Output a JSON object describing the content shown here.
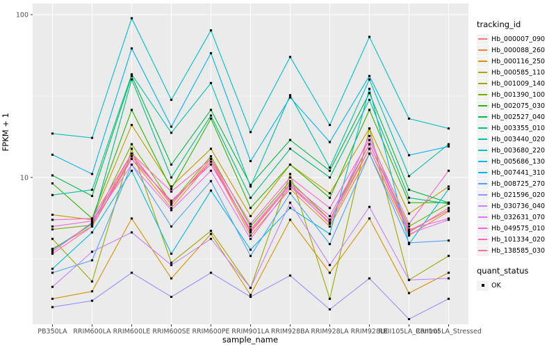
{
  "figure": {
    "y_axis": {
      "label": "FPKM + 1",
      "tick_labels": [
        "100",
        "10"
      ],
      "tick_values": [
        100,
        10
      ]
    },
    "x_axis": {
      "label": "sample_name"
    },
    "legend": {
      "tracking_title": "tracking_id",
      "quant_title": "quant_status",
      "quant_items": [
        {
          "label": "OK",
          "marker": "black-square"
        }
      ]
    },
    "colors": {
      "panel_bg": "#EBEBEB",
      "grid": "#FFFFFF",
      "axis_text": "#4D4D4D",
      "axis_tick": "#333333",
      "point": "#000000",
      "legend_key_bg": "#F2F2F2"
    }
  },
  "chart_data": {
    "type": "line",
    "title": "",
    "xlabel": "sample_name",
    "ylabel": "FPKM + 1",
    "y_scale": "log10",
    "ylim": [
      1.24,
      111
    ],
    "y_major_gridlines": [
      10,
      100
    ],
    "y_minor_gridlines": [
      3.162,
      31.62
    ],
    "grid": true,
    "legend_position": "right",
    "point_marker": "black square (quant_status OK)",
    "categories": [
      "PB350LA",
      "RRIM600LA",
      "RRIM600LE",
      "RRIM600SE",
      "RRIM600PE",
      "RRIM901LA",
      "RRIM928BA",
      "RRIM928LA",
      "RRIM928LE",
      "RRII105LA_Control",
      "RRII105LA_Stressed"
    ],
    "series": [
      {
        "name": "Hb_000007_090",
        "color": "#F8766D",
        "values": [
          3.6,
          5.2,
          14,
          6.8,
          13,
          4.6,
          9.0,
          5.2,
          15,
          4.6,
          6.5
        ]
      },
      {
        "name": "Hb_000088_260",
        "color": "#EB8335",
        "values": [
          3.65,
          5.0,
          13,
          6.5,
          12.5,
          4.4,
          8.5,
          5.0,
          14,
          4.4,
          6.2
        ]
      },
      {
        "name": "Hb_000116_250",
        "color": "#D89000",
        "values": [
          1.8,
          2.0,
          5.6,
          2.4,
          4.5,
          1.9,
          5.5,
          2.6,
          5.6,
          1.95,
          2.6
        ]
      },
      {
        "name": "Hb_000585_110",
        "color": "#BE9C00",
        "values": [
          5.9,
          5.5,
          21,
          8.8,
          15,
          5.8,
          12,
          8.0,
          20,
          6.0,
          8.8
        ]
      },
      {
        "name": "Hb_001009_140",
        "color": "#9DA700",
        "values": [
          4.2,
          2.3,
          15,
          3.0,
          4.7,
          2.1,
          10.5,
          1.8,
          20,
          2.35,
          3.3
        ]
      },
      {
        "name": "Hb_001390_100",
        "color": "#72B000",
        "values": [
          4.8,
          5.1,
          16,
          7.0,
          13.5,
          5.0,
          9.5,
          5.5,
          16,
          5.0,
          6.9
        ]
      },
      {
        "name": "Hb_002075_030",
        "color": "#2CB600",
        "values": [
          9.2,
          5.6,
          26,
          8.5,
          23,
          6.5,
          12,
          7.5,
          26,
          7.0,
          7.0
        ]
      },
      {
        "name": "Hb_002527_040",
        "color": "#00BA42",
        "values": [
          10.3,
          7.7,
          42,
          12,
          26,
          9.0,
          17,
          11,
          33,
          8.4,
          7.0
        ]
      },
      {
        "name": "Hb_003355_010",
        "color": "#00BE7C",
        "values": [
          3.6,
          5.2,
          40,
          10,
          24,
          7.5,
          15,
          10,
          30,
          7.5,
          6.9
        ]
      },
      {
        "name": "Hb_003440_020",
        "color": "#00C0A9",
        "values": [
          7.8,
          8.4,
          43,
          18.8,
          38,
          8.8,
          32,
          11.5,
          40,
          10.2,
          16
        ]
      },
      {
        "name": "Hb_003680_220",
        "color": "#00BFC8",
        "values": [
          18.6,
          17.5,
          95,
          30,
          80,
          19,
          55,
          21,
          73,
          23,
          20
        ]
      },
      {
        "name": "Hb_005686_130",
        "color": "#00BAE2",
        "values": [
          2.75,
          4.6,
          11,
          3.4,
          8.3,
          3.6,
          6.5,
          4.5,
          35,
          3.9,
          8.5
        ]
      },
      {
        "name": "Hb_007441_310",
        "color": "#00B1F5",
        "values": [
          13.8,
          10.5,
          62,
          20.5,
          58,
          12.6,
          31,
          16.5,
          42,
          13.7,
          15.5
        ]
      },
      {
        "name": "Hb_008725_270",
        "color": "#4EA2FF",
        "values": [
          2.6,
          3.1,
          12,
          5.0,
          9.5,
          3.3,
          8.0,
          3.9,
          14,
          3.97,
          4.1
        ]
      },
      {
        "name": "Hb_021596_020",
        "color": "#9491FF",
        "values": [
          1.6,
          1.75,
          2.6,
          1.85,
          2.6,
          1.85,
          2.5,
          1.55,
          2.4,
          1.35,
          1.8
        ]
      },
      {
        "name": "Hb_030736_040",
        "color": "#C57FFF",
        "values": [
          2.13,
          3.5,
          4.6,
          2.9,
          4.2,
          2.1,
          7.0,
          2.9,
          6.6,
          2.35,
          2.4
        ]
      },
      {
        "name": "Hb_032631_070",
        "color": "#E470F4",
        "values": [
          3.5,
          5.3,
          12,
          6.3,
          11,
          4.2,
          8.8,
          5.3,
          18,
          4.5,
          5.5
        ]
      },
      {
        "name": "Hb_049575_010",
        "color": "#F763DF",
        "values": [
          5.0,
          5.4,
          13,
          7.2,
          12,
          4.8,
          9.2,
          5.8,
          16,
          4.8,
          5.6
        ]
      },
      {
        "name": "Hb_101334_020",
        "color": "#FF62C2",
        "values": [
          5.5,
          5.6,
          14,
          8.2,
          13,
          5.2,
          10,
          6.5,
          17,
          5.2,
          11
        ]
      },
      {
        "name": "Hb_138585_030",
        "color": "#FF6BA2",
        "values": [
          3.4,
          5.0,
          13.5,
          7.0,
          12.5,
          4.7,
          9.0,
          5.5,
          15,
          4.7,
          6.3
        ]
      }
    ]
  }
}
